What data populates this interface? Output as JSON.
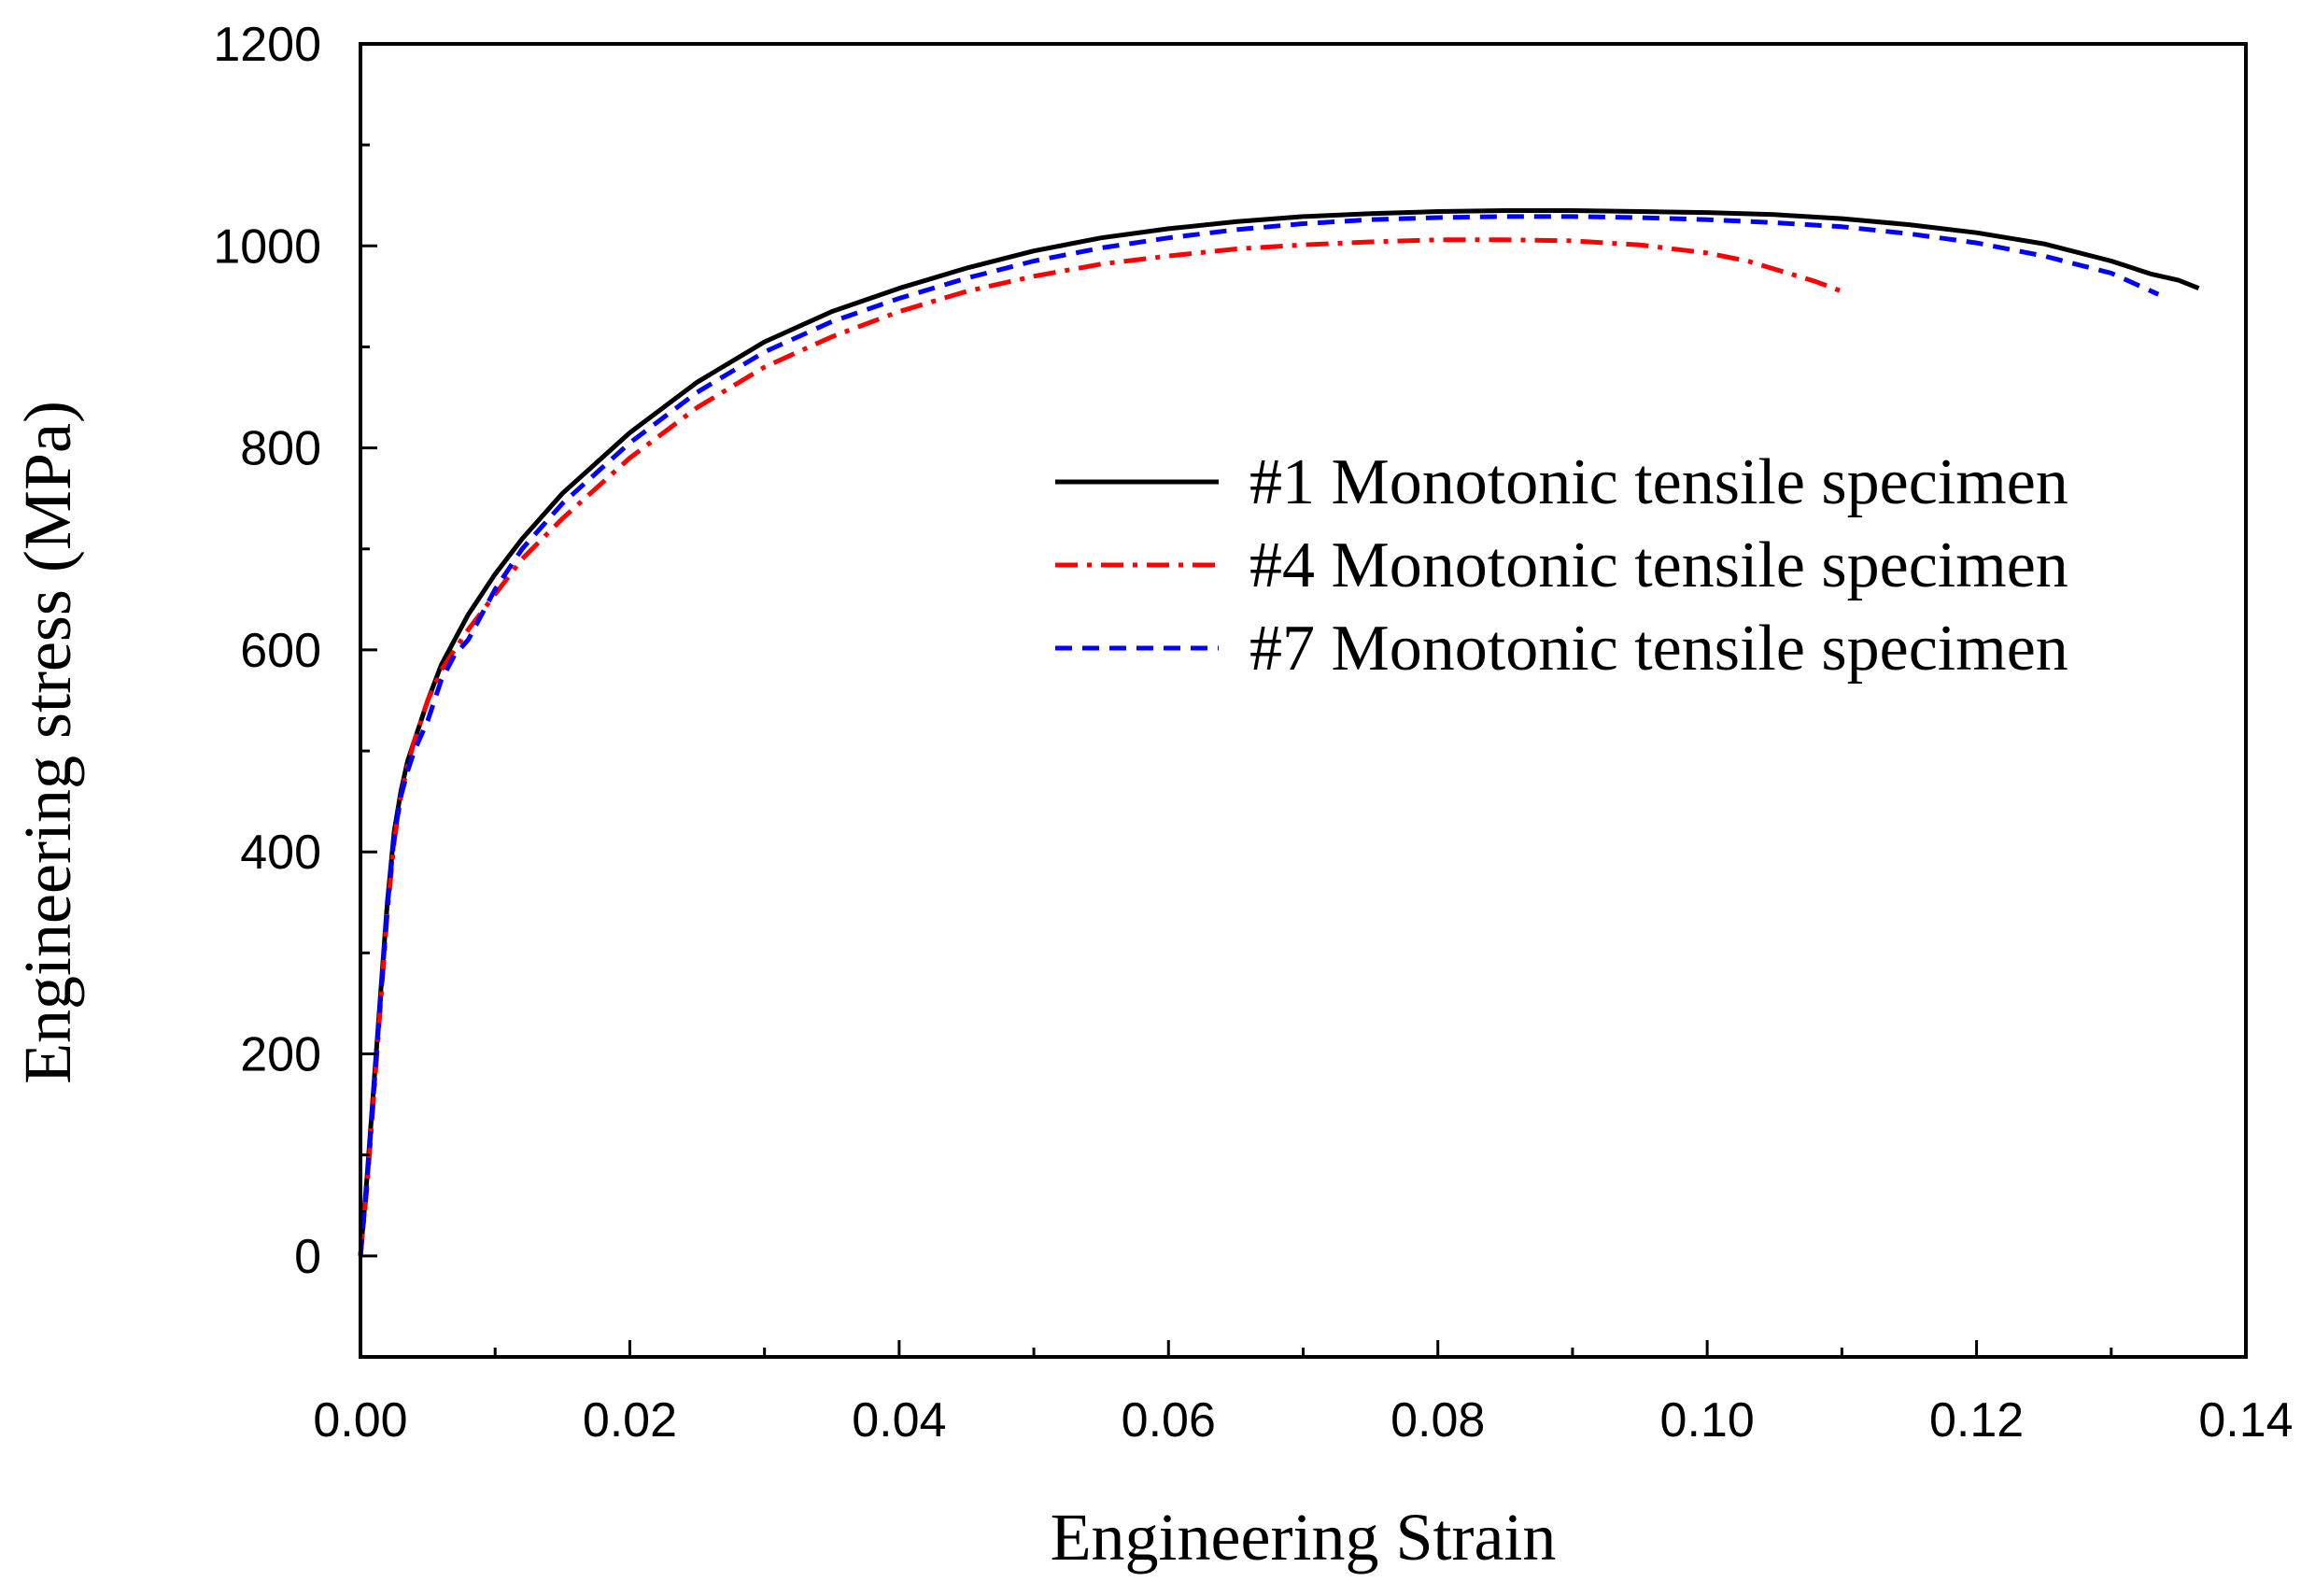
{
  "chart_data": {
    "type": "line",
    "title": "",
    "xlabel": "Engineering Strain",
    "ylabel": "Engineering stress (MPa)",
    "xlim": [
      0.0,
      0.14
    ],
    "ylim": [
      -100,
      1200
    ],
    "xticks": [
      0.0,
      0.02,
      0.04,
      0.06,
      0.08,
      0.1,
      0.12,
      0.14
    ],
    "xtick_labels": [
      "0.00",
      "0.02",
      "0.04",
      "0.06",
      "0.08",
      "0.10",
      "0.12",
      "0.14"
    ],
    "yticks": [
      0,
      200,
      400,
      600,
      800,
      1000,
      1200
    ],
    "ytick_labels": [
      "0",
      "200",
      "400",
      "600",
      "800",
      "1000",
      "1200"
    ],
    "grid": false,
    "legend_position": "right",
    "series": [
      {
        "name": "#1 Monotonic tensile specimen",
        "color": "#000000",
        "style": "solid",
        "x": [
          0.0,
          0.0005,
          0.001,
          0.0015,
          0.002,
          0.0025,
          0.003,
          0.0035,
          0.004,
          0.005,
          0.006,
          0.007,
          0.008,
          0.01,
          0.012,
          0.015,
          0.02,
          0.025,
          0.03,
          0.035,
          0.04,
          0.045,
          0.05,
          0.055,
          0.06,
          0.065,
          0.07,
          0.075,
          0.08,
          0.085,
          0.09,
          0.095,
          0.1,
          0.105,
          0.11,
          0.115,
          0.12,
          0.125,
          0.13,
          0.133,
          0.135,
          0.1365
        ],
        "y": [
          0,
          80,
          170,
          260,
          350,
          420,
          460,
          490,
          510,
          550,
          585,
          610,
          635,
          675,
          710,
          755,
          815,
          865,
          905,
          935,
          958,
          978,
          995,
          1008,
          1017,
          1024,
          1029,
          1032,
          1034,
          1035,
          1035,
          1034,
          1033,
          1031,
          1027,
          1021,
          1013,
          1002,
          985,
          972,
          966,
          958
        ]
      },
      {
        "name": "#4 Monotonic tensile specimen",
        "color": "#ff0000",
        "style": "dashdot",
        "x": [
          0.0,
          0.0005,
          0.001,
          0.0015,
          0.002,
          0.0025,
          0.003,
          0.0035,
          0.004,
          0.005,
          0.006,
          0.007,
          0.008,
          0.01,
          0.012,
          0.015,
          0.02,
          0.025,
          0.03,
          0.035,
          0.04,
          0.045,
          0.05,
          0.055,
          0.06,
          0.065,
          0.07,
          0.075,
          0.08,
          0.085,
          0.09,
          0.095,
          0.1,
          0.103,
          0.106,
          0.108,
          0.11
        ],
        "y": [
          0,
          70,
          160,
          250,
          340,
          410,
          455,
          485,
          510,
          550,
          580,
          600,
          620,
          655,
          690,
          730,
          790,
          840,
          880,
          910,
          935,
          955,
          970,
          982,
          990,
          997,
          1001,
          1004,
          1006,
          1006,
          1005,
          1001,
          993,
          985,
          973,
          965,
          955
        ]
      },
      {
        "name": "#7 Monotonic tensile specimen",
        "color": "#0000ff",
        "style": "dashed",
        "x": [
          0.0,
          0.0005,
          0.001,
          0.0015,
          0.002,
          0.0025,
          0.003,
          0.0035,
          0.004,
          0.005,
          0.006,
          0.007,
          0.008,
          0.01,
          0.012,
          0.015,
          0.02,
          0.025,
          0.03,
          0.035,
          0.04,
          0.045,
          0.05,
          0.055,
          0.06,
          0.065,
          0.07,
          0.075,
          0.08,
          0.085,
          0.09,
          0.095,
          0.1,
          0.105,
          0.11,
          0.115,
          0.12,
          0.125,
          0.13,
          0.1335
        ],
        "y": [
          0,
          75,
          165,
          255,
          345,
          415,
          455,
          480,
          500,
          530,
          570,
          595,
          610,
          660,
          700,
          745,
          805,
          855,
          895,
          925,
          948,
          968,
          985,
          998,
          1008,
          1016,
          1022,
          1026,
          1028,
          1029,
          1029,
          1028,
          1026,
          1023,
          1019,
          1012,
          1003,
          990,
          973,
          952
        ]
      }
    ]
  }
}
